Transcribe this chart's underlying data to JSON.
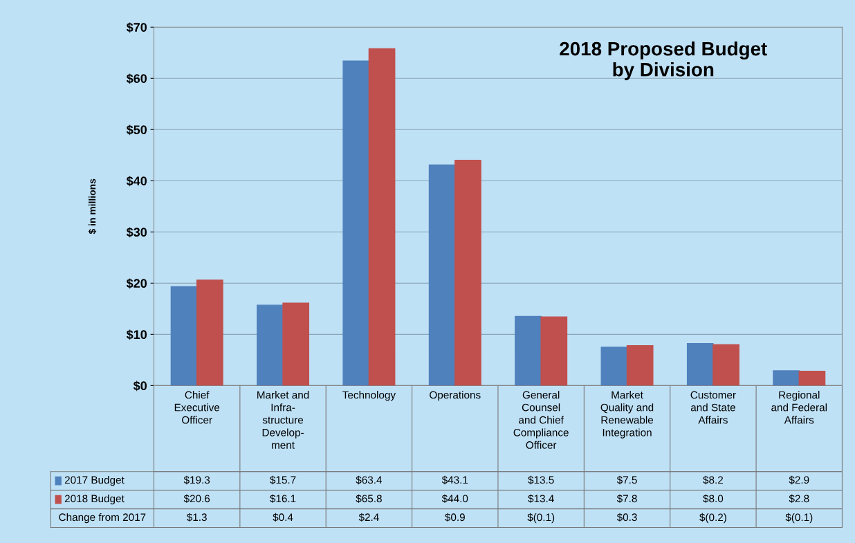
{
  "chart_data": {
    "type": "bar",
    "title": "2018 Proposed Budget\nby Division",
    "ylabel": "$ in millions",
    "categories": [
      "Chief\nExecutive\nOfficer",
      "Market and\nInfra-\nstructure\nDevelop-\nment",
      "Technology",
      "Operations",
      "General\nCounsel\nand Chief\nCompliance\nOfficer",
      "Market\nQuality and\nRenewable\nIntegration",
      "Customer\nand State\nAffairs",
      "Regional\nand Federal\nAffairs"
    ],
    "series": [
      {
        "name": "2017 Budget",
        "color": "#4f81bd",
        "values": [
          19.3,
          15.7,
          63.4,
          43.1,
          13.5,
          7.5,
          8.2,
          2.9
        ],
        "value_labels": [
          "$19.3",
          "$15.7",
          "$63.4",
          "$43.1",
          "$13.5",
          "$7.5",
          "$8.2",
          "$2.9"
        ]
      },
      {
        "name": "2018 Budget",
        "color": "#c0504d",
        "values": [
          20.6,
          16.1,
          65.8,
          44.0,
          13.4,
          7.8,
          8.0,
          2.8
        ],
        "value_labels": [
          "$20.6",
          "$16.1",
          "$65.8",
          "$44.0",
          "$13.4",
          "$7.8",
          "$8.0",
          "$2.8"
        ]
      }
    ],
    "annotations": [
      "Change from 2017",
      "$1.3",
      "$0.4",
      "$2.4",
      "$0.9",
      "$(0.1)",
      "$0.3",
      "$(0.2)",
      "$(0.1)"
    ],
    "ylim": [
      0,
      70
    ],
    "yticks": [
      {
        "value": 0,
        "label": "$0"
      },
      {
        "value": 10,
        "label": "$10"
      },
      {
        "value": 20,
        "label": "$20"
      },
      {
        "value": 30,
        "label": "$30"
      },
      {
        "value": 40,
        "label": "$40"
      },
      {
        "value": 50,
        "label": "$50"
      },
      {
        "value": 60,
        "label": "$60"
      },
      {
        "value": 70,
        "label": "$70"
      }
    ],
    "grid": "y",
    "legend": "bottom"
  }
}
